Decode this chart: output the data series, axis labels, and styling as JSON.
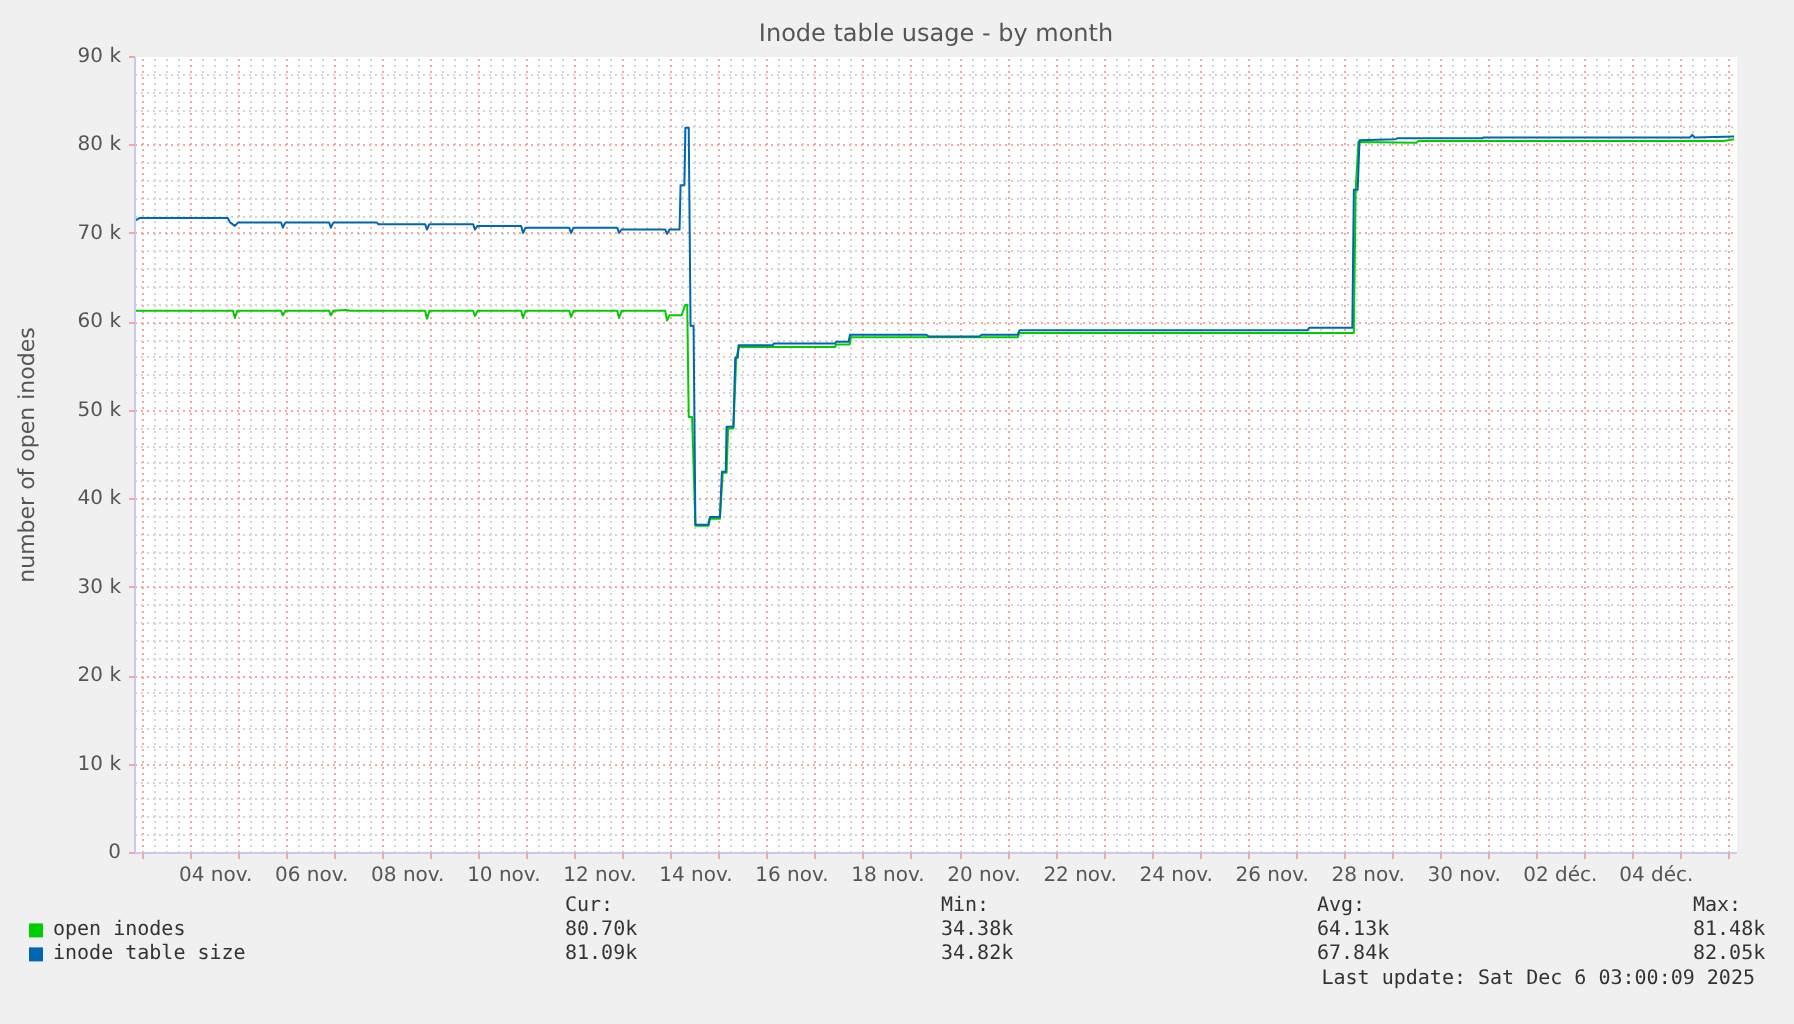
{
  "chart_data": {
    "type": "line",
    "title": "Inode table usage - by month",
    "ylabel": "number of open inodes",
    "xlim": [
      "2025-11-02T19:40",
      "2025-12-06T04:20"
    ],
    "ylim": [
      0,
      90000
    ],
    "xticks": [
      {
        "value": "2025-11-03",
        "label": null
      },
      {
        "value": "2025-11-04",
        "label": null
      },
      {
        "value": "2025-11-05",
        "label": null
      },
      {
        "value": "2025-11-06",
        "label": null
      },
      {
        "value": "2025-11-07",
        "label": null
      },
      {
        "value": "2025-11-08",
        "label": null
      },
      {
        "value": "2025-11-09",
        "label": null
      },
      {
        "value": "2025-11-10",
        "label": null
      },
      {
        "value": "2025-11-11",
        "label": null
      },
      {
        "value": "2025-11-12",
        "label": null
      },
      {
        "value": "2025-11-13",
        "label": null
      },
      {
        "value": "2025-11-14",
        "label": null
      },
      {
        "value": "2025-11-15",
        "label": null
      },
      {
        "value": "2025-11-16",
        "label": null
      },
      {
        "value": "2025-11-17",
        "label": null
      },
      {
        "value": "2025-11-18",
        "label": null
      },
      {
        "value": "2025-11-19",
        "label": null
      },
      {
        "value": "2025-11-20",
        "label": null
      },
      {
        "value": "2025-11-21",
        "label": null
      },
      {
        "value": "2025-11-22",
        "label": null
      },
      {
        "value": "2025-11-23",
        "label": null
      },
      {
        "value": "2025-11-24",
        "label": null
      },
      {
        "value": "2025-11-25",
        "label": null
      },
      {
        "value": "2025-11-26",
        "label": null
      },
      {
        "value": "2025-11-27",
        "label": null
      },
      {
        "value": "2025-11-28",
        "label": null
      },
      {
        "value": "2025-11-29",
        "label": null
      },
      {
        "value": "2025-11-30",
        "label": null
      },
      {
        "value": "2025-12-01",
        "label": null
      },
      {
        "value": "2025-12-02",
        "label": null
      },
      {
        "value": "2025-12-03",
        "label": null
      },
      {
        "value": "2025-12-04",
        "label": null
      },
      {
        "value": "2025-12-05",
        "label": null
      },
      {
        "value": "2025-12-06",
        "label": null
      },
      {
        "value": "2025-11-04T12:00",
        "label": "04 nov."
      },
      {
        "value": "2025-11-06T12:00",
        "label": "06 nov."
      },
      {
        "value": "2025-11-08T12:00",
        "label": "08 nov."
      },
      {
        "value": "2025-11-10T12:00",
        "label": "10 nov."
      },
      {
        "value": "2025-11-12T12:00",
        "label": "12 nov."
      },
      {
        "value": "2025-11-14T12:00",
        "label": "14 nov."
      },
      {
        "value": "2025-11-16T12:00",
        "label": "16 nov."
      },
      {
        "value": "2025-11-18T12:00",
        "label": "18 nov."
      },
      {
        "value": "2025-11-20T12:00",
        "label": "20 nov."
      },
      {
        "value": "2025-11-22T12:00",
        "label": "22 nov."
      },
      {
        "value": "2025-11-24T12:00",
        "label": "24 nov."
      },
      {
        "value": "2025-11-26T12:00",
        "label": "26 nov."
      },
      {
        "value": "2025-11-28T12:00",
        "label": "28 nov."
      },
      {
        "value": "2025-11-30T12:00",
        "label": "30 nov."
      },
      {
        "value": "2025-12-02T12:00",
        "label": "02 déc."
      },
      {
        "value": "2025-12-04T12:00",
        "label": "04 déc."
      }
    ],
    "yticks": [
      0,
      {
        "value": 10000,
        "label": "10 k"
      },
      {
        "value": 20000,
        "label": "20 k"
      },
      {
        "value": 30000,
        "label": "30 k"
      },
      {
        "value": 40000,
        "label": "40 k"
      },
      {
        "value": 50000,
        "label": "50 k"
      },
      {
        "value": 60000,
        "label": "60 k"
      },
      {
        "value": 70000,
        "label": "70 k"
      },
      {
        "value": 80000,
        "label": "80 k"
      },
      {
        "value": 90000,
        "label": "90 k"
      }
    ],
    "grid": true,
    "legend": "bottom",
    "line_style": "solid",
    "series": [
      {
        "name": "open inodes",
        "color": "#00cc00",
        "x": [
          "2025-11-02T19:40",
          "2025-11-04T20:40",
          "2025-11-04T21:35",
          "2025-11-04T22:50",
          "2025-11-05T20:40",
          "2025-11-05T21:35",
          "2025-11-05T22:50",
          "2025-11-06T20:40",
          "2025-11-06T21:35",
          "2025-11-06T22:50",
          "2025-11-07T04:50",
          "2025-11-07T07:10",
          "2025-11-08T20:40",
          "2025-11-08T21:35",
          "2025-11-08T22:50",
          "2025-11-09T20:40",
          "2025-11-09T21:35",
          "2025-11-09T22:50",
          "2025-11-10T20:40",
          "2025-11-10T21:35",
          "2025-11-10T22:50",
          "2025-11-11T20:40",
          "2025-11-11T21:35",
          "2025-11-11T22:50",
          "2025-11-12T20:40",
          "2025-11-12T21:35",
          "2025-11-12T22:50",
          "2025-11-13T20:40",
          "2025-11-13T21:35",
          "2025-11-13T22:50",
          "2025-11-14T04:50",
          "2025-11-14T06:45",
          "2025-11-14T07:40",
          "2025-11-14T08:25",
          "2025-11-14T10:05",
          "2025-11-14T11:45",
          "2025-11-14T18:15",
          "2025-11-14T19:00",
          "2025-11-15T00:00",
          "2025-11-15T01:25",
          "2025-11-15T03:20",
          "2025-11-15T04:05",
          "2025-11-15T06:45",
          "2025-11-15T08:10",
          "2025-11-15T09:35",
          "2025-11-17T09:35",
          "2025-11-17T10:05",
          "2025-11-17T16:50",
          "2025-11-17T17:30",
          "2025-11-21T04:50",
          "2025-11-21T05:45",
          "2025-11-28T04:50",
          "2025-11-28T05:45",
          "2025-11-28T07:10",
          "2025-11-29T12:00",
          "2025-11-29T13:10",
          "2025-12-05T21:35",
          "2025-12-06T02:55"
        ],
        "values": [
          61300,
          61300,
          60500,
          61300,
          61300,
          60800,
          61300,
          61300,
          60800,
          61300,
          61400,
          61300,
          61300,
          60400,
          61300,
          61300,
          60700,
          61300,
          61300,
          60500,
          61300,
          61300,
          60600,
          61300,
          61300,
          60500,
          61300,
          61300,
          60200,
          60800,
          60800,
          62000,
          62000,
          49300,
          49300,
          37000,
          37000,
          37800,
          37800,
          43000,
          43000,
          48000,
          48000,
          56000,
          57200,
          57200,
          57500,
          57500,
          58300,
          58300,
          58800,
          58800,
          75000,
          80400,
          80300,
          80500,
          80500,
          80700
        ]
      },
      {
        "name": "inode table size",
        "color": "#0066b3",
        "x": [
          "2025-11-02T19:40",
          "2025-11-02T22:00",
          "2025-11-04T18:00",
          "2025-11-04T19:10",
          "2025-11-04T21:35",
          "2025-11-04T23:15",
          "2025-11-05T20:40",
          "2025-11-05T21:35",
          "2025-11-05T22:50",
          "2025-11-06T20:40",
          "2025-11-06T21:35",
          "2025-11-06T22:50",
          "2025-11-07T20:25",
          "2025-11-07T21:20",
          "2025-11-08T20:40",
          "2025-11-08T21:35",
          "2025-11-08T22:50",
          "2025-11-09T20:40",
          "2025-11-09T21:35",
          "2025-11-09T22:50",
          "2025-11-10T20:40",
          "2025-11-10T21:35",
          "2025-11-10T22:50",
          "2025-11-11T20:40",
          "2025-11-11T21:35",
          "2025-11-11T22:50",
          "2025-11-12T20:40",
          "2025-11-12T21:35",
          "2025-11-12T22:50",
          "2025-11-13T20:40",
          "2025-11-13T21:35",
          "2025-11-13T22:50",
          "2025-11-14T03:50",
          "2025-11-14T04:20",
          "2025-11-14T06:15",
          "2025-11-14T06:45",
          "2025-11-14T08:25",
          "2025-11-14T09:20",
          "2025-11-14T10:50",
          "2025-11-14T11:45",
          "2025-11-14T18:15",
          "2025-11-14T19:00",
          "2025-11-15T00:00",
          "2025-11-15T01:00",
          "2025-11-15T02:55",
          "2025-11-15T03:20",
          "2025-11-15T06:45",
          "2025-11-15T07:40",
          "2025-11-15T08:55",
          "2025-11-15T09:20",
          "2025-11-16T02:25",
          "2025-11-16T02:55",
          "2025-11-17T09:35",
          "2025-11-17T10:05",
          "2025-11-17T16:20",
          "2025-11-17T17:00",
          "2025-11-19T07:10",
          "2025-11-19T08:25",
          "2025-11-20T09:35",
          "2025-11-20T10:50",
          "2025-11-21T04:50",
          "2025-11-21T05:45",
          "2025-11-27T05:45",
          "2025-11-27T06:30",
          "2025-11-28T04:05",
          "2025-11-28T04:50",
          "2025-11-28T06:45",
          "2025-11-28T07:40",
          "2025-11-29T01:40",
          "2025-11-29T02:25",
          "2025-11-30T20:55",
          "2025-11-30T21:35",
          "2025-12-05T04:50",
          "2025-12-05T06:00",
          "2025-12-05T07:10",
          "2025-12-06T02:55"
        ],
        "values": [
          71500,
          71800,
          71800,
          71300,
          70900,
          71300,
          71300,
          70700,
          71300,
          71300,
          70700,
          71300,
          71300,
          71100,
          71100,
          70500,
          71100,
          71100,
          70500,
          70900,
          70900,
          70100,
          70700,
          70700,
          70100,
          70700,
          70700,
          70100,
          70500,
          70500,
          70000,
          70500,
          70500,
          75500,
          75500,
          82000,
          82000,
          59600,
          59600,
          37100,
          37100,
          38000,
          38000,
          43100,
          43100,
          48200,
          48200,
          56000,
          56000,
          57400,
          57400,
          57600,
          57600,
          57800,
          57800,
          58600,
          58600,
          58400,
          58400,
          58600,
          58600,
          59100,
          59100,
          59400,
          59400,
          75000,
          75000,
          80600,
          80700,
          80800,
          80800,
          80900,
          80900,
          81200,
          80900,
          81000
        ]
      }
    ],
    "annotations": [
      "Cur:",
      "Min:",
      "Avg:",
      "Max:",
      "80.70k",
      "34.38k",
      "64.13k",
      "81.48k",
      "81.09k",
      "34.82k",
      "67.84k",
      "82.05k",
      "Last update: Sat Dec  6 03:00:09 2025"
    ]
  }
}
